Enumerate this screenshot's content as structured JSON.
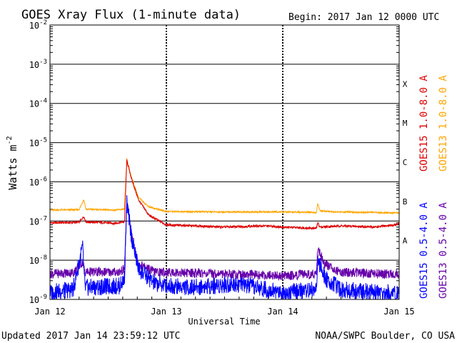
{
  "chart_data": {
    "type": "line",
    "title": "GOES Xray Flux (1-minute data)",
    "begin_label": "Begin:  2017 Jan 12 0000 UTC",
    "xlabel": "Universal Time",
    "ylabel_base": "Watts m",
    "ylabel_exp": "-2",
    "x_ticks": [
      "Jan 12",
      "Jan 13",
      "Jan 14",
      "Jan 15"
    ],
    "xlim_days": [
      0,
      3
    ],
    "y_scale": "log",
    "ylim": [
      1e-09,
      0.01
    ],
    "y_ticks": [
      {
        "base": "10",
        "exp": "-9"
      },
      {
        "base": "10",
        "exp": "-8"
      },
      {
        "base": "10",
        "exp": "-7"
      },
      {
        "base": "10",
        "exp": "-6"
      },
      {
        "base": "10",
        "exp": "-5"
      },
      {
        "base": "10",
        "exp": "-4"
      },
      {
        "base": "10",
        "exp": "-3"
      },
      {
        "base": "10",
        "exp": "-2"
      }
    ],
    "flare_classes": [
      {
        "label": "A",
        "flux": 1e-08
      },
      {
        "label": "B",
        "flux": 1e-07
      },
      {
        "label": "C",
        "flux": 1e-06
      },
      {
        "label": "M",
        "flux": 1e-05
      },
      {
        "label": "X",
        "flux": 0.0001
      }
    ],
    "series": [
      {
        "name": "GOES15 1.0-8.0 A",
        "color": "#dd0000",
        "points": [
          [
            0,
            9e-08
          ],
          [
            0.25,
            9.2e-08
          ],
          [
            0.29,
            1.3e-07
          ],
          [
            0.31,
            9.5e-08
          ],
          [
            0.55,
            8.8e-08
          ],
          [
            0.64,
            9.5e-08
          ],
          [
            0.66,
            3.5e-06
          ],
          [
            0.7,
            1.2e-06
          ],
          [
            0.76,
            3.5e-07
          ],
          [
            0.85,
            1.4e-07
          ],
          [
            1.0,
            8e-08
          ],
          [
            1.5,
            7e-08
          ],
          [
            1.85,
            7.5e-08
          ],
          [
            2.0,
            7e-08
          ],
          [
            2.29,
            6.5e-08
          ],
          [
            2.3,
            9e-08
          ],
          [
            2.32,
            7e-08
          ],
          [
            2.5,
            7.5e-08
          ],
          [
            2.8,
            7e-08
          ],
          [
            2.97,
            8e-08
          ],
          [
            3.0,
            8.5e-08
          ]
        ]
      },
      {
        "name": "GOES13 1.0-8.0 A",
        "color": "#ffa500",
        "points": [
          [
            0,
            1.9e-07
          ],
          [
            0.25,
            1.95e-07
          ],
          [
            0.29,
            3.5e-07
          ],
          [
            0.31,
            2e-07
          ],
          [
            0.55,
            1.9e-07
          ],
          [
            0.64,
            2e-07
          ],
          [
            0.66,
            3.8e-06
          ],
          [
            0.7,
            1.3e-06
          ],
          [
            0.76,
            4e-07
          ],
          [
            0.85,
            2.3e-07
          ],
          [
            1.0,
            1.75e-07
          ],
          [
            1.5,
            1.7e-07
          ],
          [
            2.0,
            1.7e-07
          ],
          [
            2.29,
            1.65e-07
          ],
          [
            2.3,
            2.8e-07
          ],
          [
            2.32,
            1.8e-07
          ],
          [
            2.5,
            1.7e-07
          ],
          [
            2.8,
            1.65e-07
          ],
          [
            3.0,
            1.6e-07
          ]
        ]
      },
      {
        "name": "GOES15 0.5-4.0 A",
        "color": "#0000ff",
        "points": [
          [
            0,
            1.5e-09
          ],
          [
            0.2,
            1.8e-09
          ],
          [
            0.28,
            2.2e-08
          ],
          [
            0.3,
            2e-09
          ],
          [
            0.6,
            2.2e-09
          ],
          [
            0.64,
            3.5e-09
          ],
          [
            0.66,
            3e-07
          ],
          [
            0.7,
            4e-08
          ],
          [
            0.76,
            6e-09
          ],
          [
            0.9,
            2.5e-09
          ],
          [
            1.2,
            2e-09
          ],
          [
            1.6,
            2.5e-09
          ],
          [
            2.0,
            1.5e-09
          ],
          [
            2.29,
            1.8e-09
          ],
          [
            2.3,
            1e-08
          ],
          [
            2.36,
            3.5e-09
          ],
          [
            2.5,
            1.8e-09
          ],
          [
            2.8,
            1.5e-09
          ],
          [
            3.0,
            1.4e-09
          ]
        ]
      },
      {
        "name": "GOES13 0.5-4.0 A",
        "color": "#6600aa",
        "points": [
          [
            0,
            4.5e-09
          ],
          [
            0.2,
            4.8e-09
          ],
          [
            0.28,
            9e-09
          ],
          [
            0.3,
            5e-09
          ],
          [
            0.6,
            5e-09
          ],
          [
            0.64,
            6e-09
          ],
          [
            0.66,
            3e-07
          ],
          [
            0.7,
            4.5e-08
          ],
          [
            0.76,
            8e-09
          ],
          [
            0.9,
            5e-09
          ],
          [
            1.5,
            4.5e-09
          ],
          [
            2.0,
            4e-09
          ],
          [
            2.29,
            4.5e-09
          ],
          [
            2.3,
            2e-08
          ],
          [
            2.36,
            8e-09
          ],
          [
            2.5,
            5e-09
          ],
          [
            2.8,
            4.5e-09
          ],
          [
            3.0,
            4.5e-09
          ]
        ]
      }
    ]
  },
  "footer": {
    "updated": "Updated 2017 Jan 14 23:59:12 UTC",
    "credit": "NOAA/SWPC Boulder, CO USA"
  }
}
